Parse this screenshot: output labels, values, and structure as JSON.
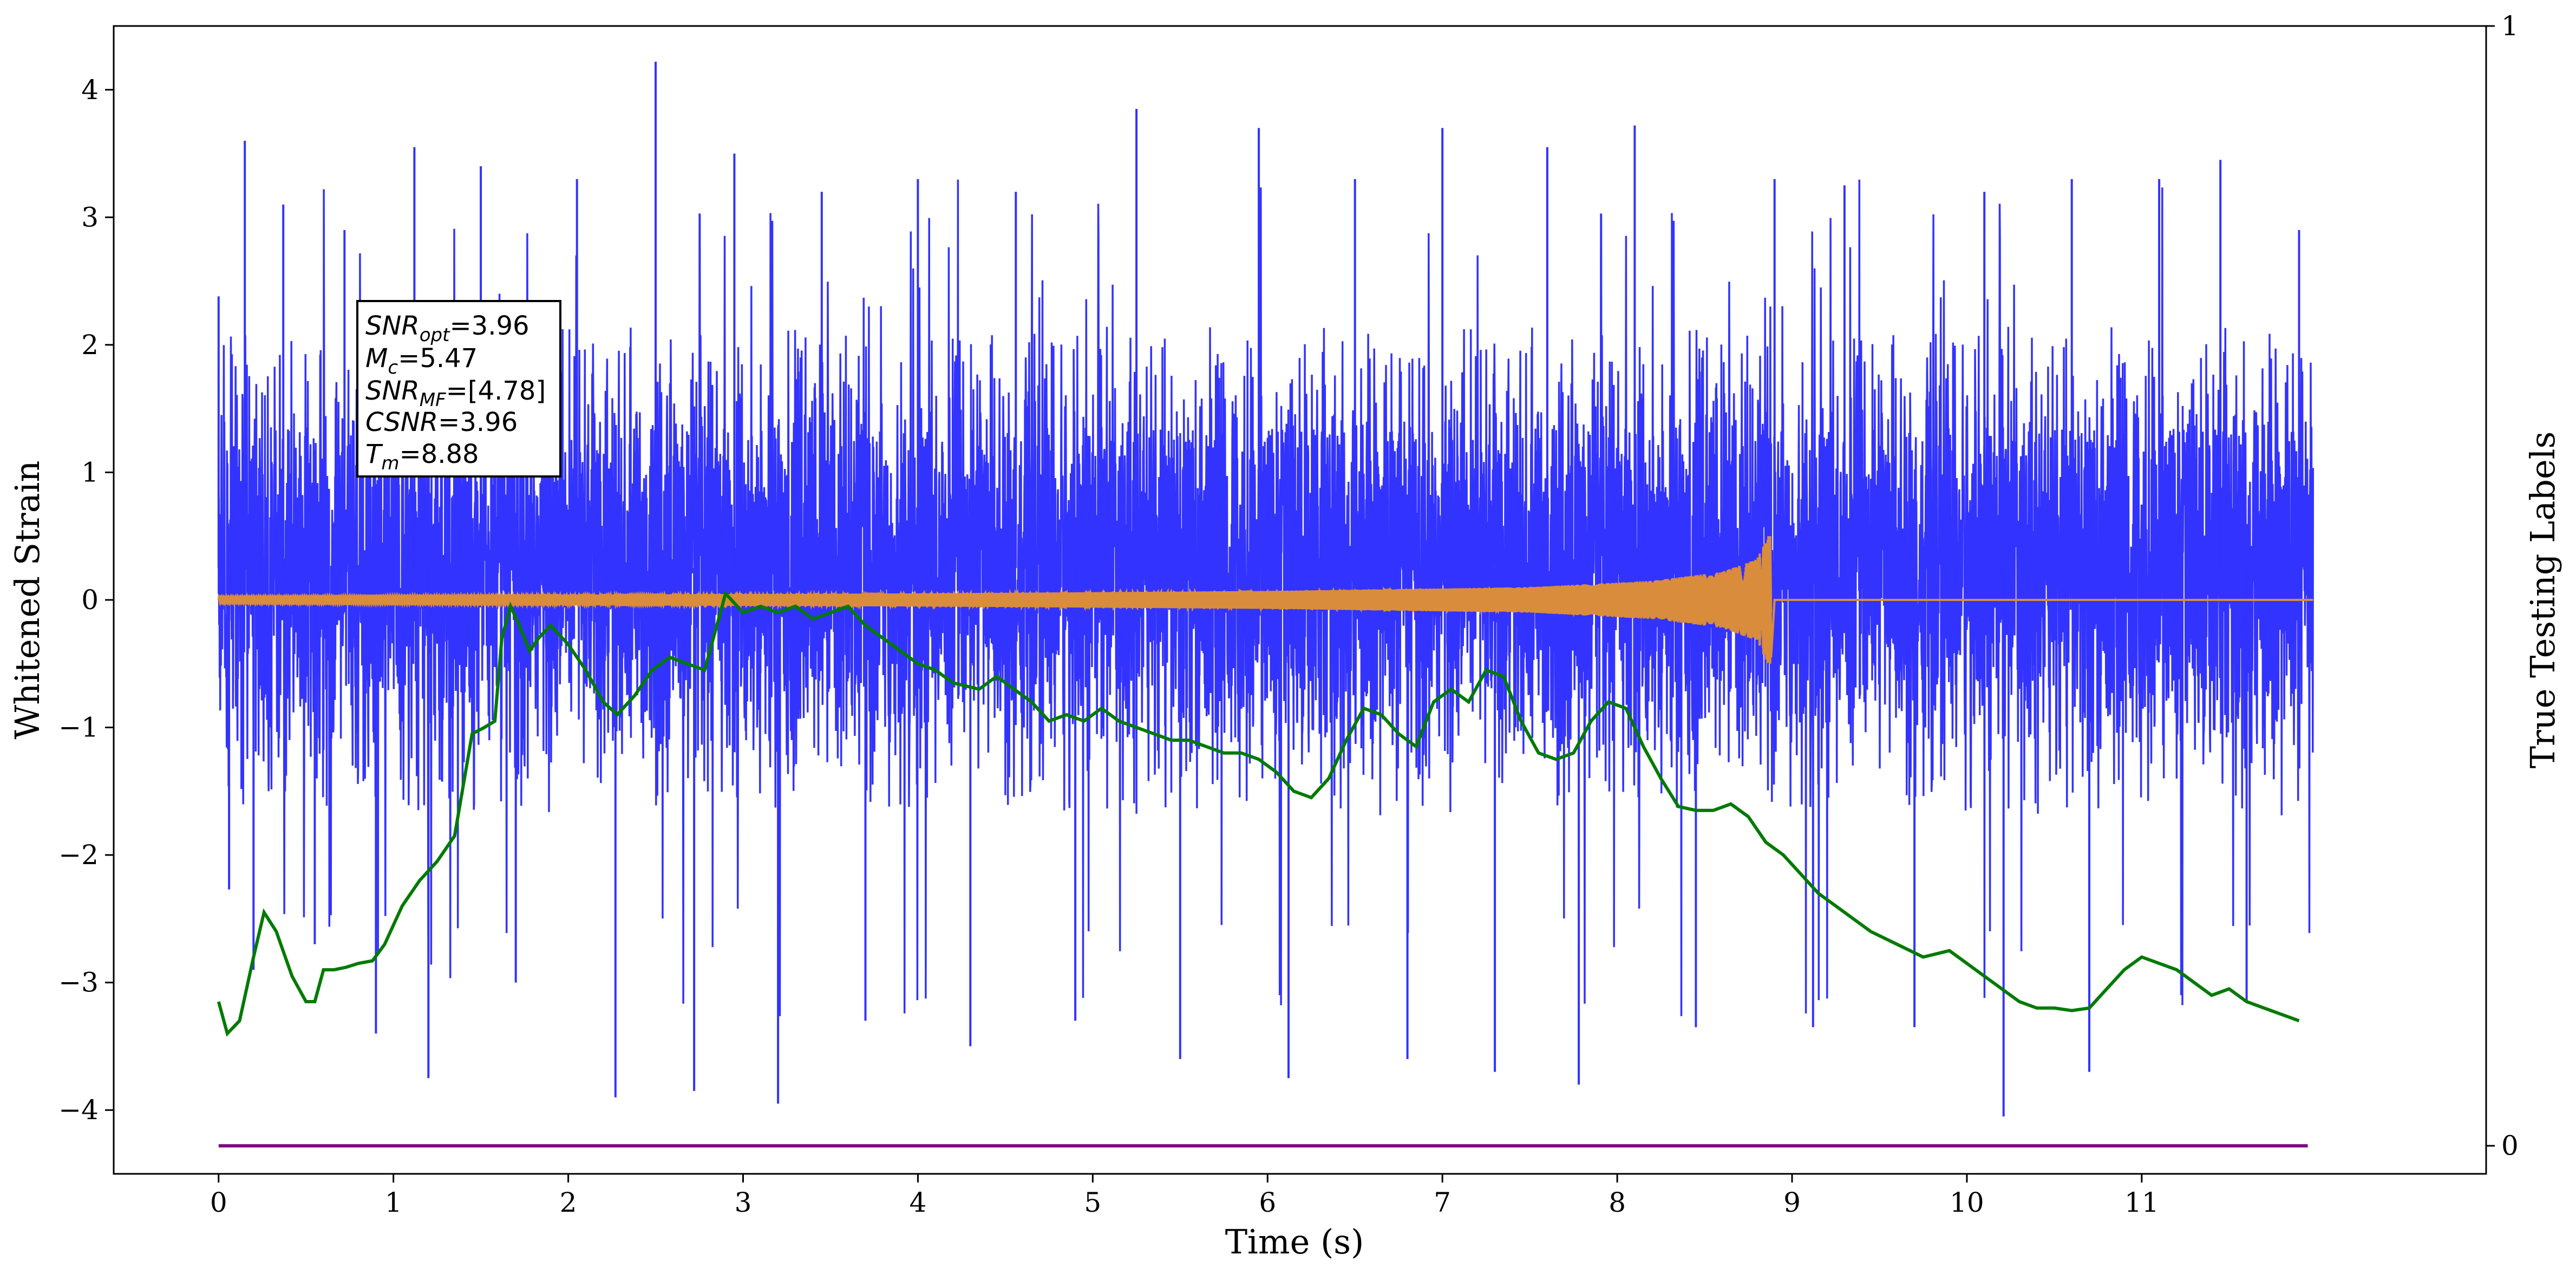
{
  "chart_data": {
    "type": "line",
    "xlabel": "Time (s)",
    "ylabel": "Whitened Strain",
    "y2label": "True Testing Labels",
    "xlim": [
      -0.6,
      12.97
    ],
    "ylim": [
      -4.5,
      4.5
    ],
    "y2lim": [
      0,
      1
    ],
    "xticks": [
      "0",
      "1",
      "2",
      "3",
      "4",
      "5",
      "6",
      "7",
      "8",
      "9",
      "10",
      "11"
    ],
    "yticks": [
      "4",
      "3",
      "2",
      "1",
      "0",
      "−1",
      "−2",
      "−3",
      "−4"
    ],
    "y2ticks": [
      "1",
      "0"
    ],
    "grid": false,
    "annotation": {
      "snr_opt": {
        "label": "SNR",
        "sub": "opt",
        "value": "=3.96"
      },
      "mc": {
        "label": "M",
        "sub": "c",
        "value": "=5.47"
      },
      "snr_mf": {
        "label": "SNR",
        "sub": "MF",
        "value": "=[4.78]"
      },
      "csnr": {
        "label": "CSNR",
        "sub": "",
        "value": "=3.96"
      },
      "tm": {
        "label": "T",
        "sub": "m",
        "value": "=8.88"
      }
    },
    "series": [
      {
        "role": "whitened strain noise",
        "color": "#3333ff",
        "t_range": [
          0,
          11.98
        ],
        "typical_amplitude": [
          -1.6,
          2.0
        ],
        "peak_samples": [
          [
            0.0,
            2.38
          ],
          [
            0.06,
            -2.27
          ],
          [
            0.15,
            3.6
          ],
          [
            0.2,
            -2.9
          ],
          [
            0.37,
            3.1
          ],
          [
            0.55,
            -2.7
          ],
          [
            0.72,
            2.9
          ],
          [
            0.9,
            -3.4
          ],
          [
            1.12,
            3.55
          ],
          [
            1.2,
            -3.75
          ],
          [
            1.5,
            3.4
          ],
          [
            1.7,
            -3.0
          ],
          [
            2.05,
            3.3
          ],
          [
            2.27,
            -3.9
          ],
          [
            2.5,
            4.22
          ],
          [
            2.72,
            -3.85
          ],
          [
            2.95,
            3.5
          ],
          [
            3.2,
            -3.95
          ],
          [
            3.45,
            3.2
          ],
          [
            3.7,
            -3.3
          ],
          [
            4.0,
            3.3
          ],
          [
            4.3,
            -3.5
          ],
          [
            4.56,
            3.2
          ],
          [
            4.9,
            -3.3
          ],
          [
            5.25,
            3.85
          ],
          [
            5.5,
            -3.6
          ],
          [
            5.95,
            3.7
          ],
          [
            6.12,
            -3.75
          ],
          [
            6.5,
            3.3
          ],
          [
            6.8,
            -3.6
          ],
          [
            7.0,
            3.7
          ],
          [
            7.3,
            -3.7
          ],
          [
            7.6,
            3.55
          ],
          [
            7.78,
            -3.8
          ],
          [
            8.1,
            3.72
          ],
          [
            8.45,
            -3.35
          ],
          [
            8.9,
            3.3
          ],
          [
            9.12,
            -3.35
          ],
          [
            9.3,
            3.25
          ],
          [
            9.7,
            -3.35
          ],
          [
            10.1,
            3.2
          ],
          [
            10.21,
            -4.05
          ],
          [
            10.6,
            3.3
          ],
          [
            10.7,
            -3.7
          ],
          [
            11.1,
            3.3
          ],
          [
            11.45,
            3.45
          ],
          [
            11.6,
            -3.15
          ],
          [
            11.9,
            2.9
          ]
        ]
      },
      {
        "role": "injected chirp signal",
        "color": "#d98c3c",
        "t_range": [
          0,
          11.98
        ],
        "merger_time": 8.88,
        "envelope": [
          [
            0.0,
            0.03
          ],
          [
            2.0,
            0.04
          ],
          [
            4.0,
            0.05
          ],
          [
            6.0,
            0.07
          ],
          [
            7.5,
            0.1
          ],
          [
            8.2,
            0.15
          ],
          [
            8.6,
            0.22
          ],
          [
            8.8,
            0.32
          ],
          [
            8.86,
            0.5
          ],
          [
            8.88,
            -0.45
          ],
          [
            8.9,
            0.0
          ]
        ]
      },
      {
        "role": "smoothed trace",
        "color": "#007a00",
        "x": [
          0.0,
          0.05,
          0.12,
          0.2,
          0.26,
          0.33,
          0.42,
          0.5,
          0.55,
          0.6,
          0.66,
          0.73,
          0.8,
          0.88,
          0.95,
          1.05,
          1.15,
          1.25,
          1.35,
          1.45,
          1.52,
          1.58,
          1.62,
          1.67,
          1.72,
          1.78,
          1.83,
          1.9,
          2.0,
          2.1,
          2.2,
          2.28,
          2.38,
          2.48,
          2.58,
          2.68,
          2.78,
          2.9,
          3.0,
          3.1,
          3.2,
          3.3,
          3.4,
          3.5,
          3.6,
          3.7,
          3.8,
          3.9,
          4.0,
          4.1,
          4.2,
          4.35,
          4.45,
          4.55,
          4.65,
          4.75,
          4.85,
          4.95,
          5.05,
          5.15,
          5.25,
          5.35,
          5.45,
          5.55,
          5.65,
          5.75,
          5.85,
          5.95,
          6.05,
          6.15,
          6.25,
          6.35,
          6.45,
          6.55,
          6.65,
          6.75,
          6.85,
          6.95,
          7.05,
          7.15,
          7.25,
          7.35,
          7.45,
          7.55,
          7.65,
          7.75,
          7.85,
          7.95,
          8.05,
          8.15,
          8.25,
          8.35,
          8.45,
          8.55,
          8.65,
          8.75,
          8.85,
          8.95,
          9.05,
          9.15,
          9.3,
          9.45,
          9.6,
          9.75,
          9.9,
          10.0,
          10.1,
          10.2,
          10.3,
          10.4,
          10.5,
          10.6,
          10.7,
          10.8,
          10.9,
          11.0,
          11.1,
          11.2,
          11.3,
          11.4,
          11.5,
          11.6,
          11.7,
          11.8,
          11.9
        ],
        "y": [
          -3.15,
          -3.4,
          -3.3,
          -2.8,
          -2.45,
          -2.6,
          -2.95,
          -3.15,
          -3.15,
          -2.9,
          -2.9,
          -2.88,
          -2.85,
          -2.83,
          -2.7,
          -2.4,
          -2.2,
          -2.05,
          -1.85,
          -1.05,
          -1.0,
          -0.95,
          -0.3,
          -0.05,
          -0.2,
          -0.4,
          -0.3,
          -0.2,
          -0.35,
          -0.55,
          -0.8,
          -0.9,
          -0.75,
          -0.55,
          -0.45,
          -0.5,
          -0.55,
          0.05,
          -0.1,
          -0.05,
          -0.1,
          -0.05,
          -0.15,
          -0.1,
          -0.05,
          -0.2,
          -0.3,
          -0.4,
          -0.5,
          -0.55,
          -0.65,
          -0.7,
          -0.6,
          -0.7,
          -0.8,
          -0.95,
          -0.9,
          -0.95,
          -0.85,
          -0.95,
          -1.0,
          -1.05,
          -1.1,
          -1.1,
          -1.15,
          -1.2,
          -1.2,
          -1.25,
          -1.35,
          -1.5,
          -1.55,
          -1.4,
          -1.1,
          -0.85,
          -0.9,
          -1.05,
          -1.15,
          -0.8,
          -0.7,
          -0.8,
          -0.55,
          -0.6,
          -0.95,
          -1.2,
          -1.25,
          -1.2,
          -0.95,
          -0.8,
          -0.85,
          -1.15,
          -1.4,
          -1.62,
          -1.65,
          -1.65,
          -1.6,
          -1.7,
          -1.9,
          -2.0,
          -2.15,
          -2.3,
          -2.45,
          -2.6,
          -2.7,
          -2.8,
          -2.75,
          -2.85,
          -2.95,
          -3.05,
          -3.15,
          -3.2,
          -3.2,
          -3.22,
          -3.2,
          -3.05,
          -2.9,
          -2.8,
          -2.85,
          -2.9,
          -3.0,
          -3.1,
          -3.05,
          -3.15,
          -3.2,
          -3.25,
          -3.3
        ]
      },
      {
        "role": "true testing label",
        "color": "#800080",
        "axis": "y2",
        "x": [
          0.0,
          11.95
        ],
        "y": [
          0.0,
          0.0
        ]
      }
    ]
  }
}
